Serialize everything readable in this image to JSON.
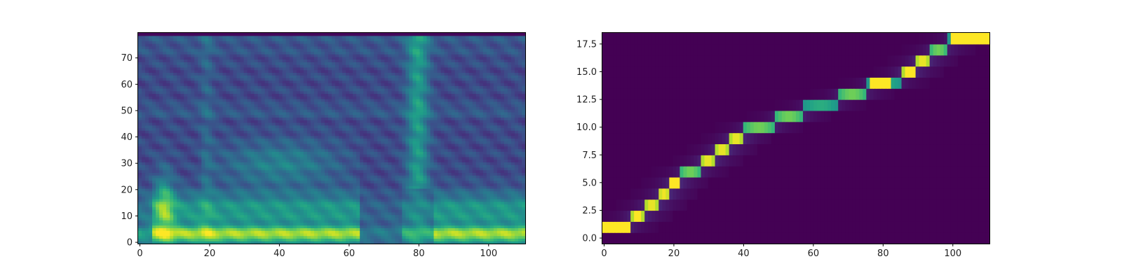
{
  "chart_data": [
    {
      "type": "heatmap",
      "title": "",
      "xlabel": "",
      "ylabel": "",
      "xlim": [
        -0.5,
        110.5
      ],
      "ylim": [
        -0.5,
        79.5
      ],
      "xticks": [
        0,
        20,
        40,
        60,
        80,
        100
      ],
      "yticks": [
        0,
        10,
        20,
        30,
        40,
        50,
        60,
        70
      ],
      "xtick_labels": [
        "0",
        "20",
        "40",
        "60",
        "80",
        "100"
      ],
      "ytick_labels": [
        "0",
        "10",
        "20",
        "30",
        "40",
        "50",
        "60",
        "70"
      ],
      "colormap": "viridis",
      "n_cols": 110,
      "n_rows": 80,
      "content": "mel spectrogram-like intensity: bright low-frequency band across frames 5-62 and 84-110, bright vertical band near frame 78-80, darker gap around frames 63-75"
    },
    {
      "type": "heatmap",
      "title": "",
      "xlabel": "",
      "ylabel": "",
      "xlim": [
        -0.5,
        110.5
      ],
      "ylim": [
        -0.5,
        18.5
      ],
      "xticks": [
        0,
        20,
        40,
        60,
        80,
        100
      ],
      "yticks": [
        0,
        2.5,
        5,
        7.5,
        10,
        12.5,
        15,
        17.5
      ],
      "xtick_labels": [
        "0",
        "20",
        "40",
        "60",
        "80",
        "100"
      ],
      "ytick_labels": [
        "0.0",
        "2.5",
        "5.0",
        "7.5",
        "10.0",
        "12.5",
        "15.0",
        "17.5"
      ],
      "colormap": "viridis",
      "n_cols": 110,
      "n_rows": 19,
      "alignment_path": [
        {
          "row": 1,
          "x_start": 0,
          "x_end": 7
        },
        {
          "row": 2,
          "x_start": 8,
          "x_end": 11
        },
        {
          "row": 3,
          "x_start": 12,
          "x_end": 15
        },
        {
          "row": 4,
          "x_start": 16,
          "x_end": 18
        },
        {
          "row": 5,
          "x_start": 19,
          "x_end": 21
        },
        {
          "row": 6,
          "x_start": 22,
          "x_end": 27
        },
        {
          "row": 7,
          "x_start": 28,
          "x_end": 31
        },
        {
          "row": 8,
          "x_start": 32,
          "x_end": 35
        },
        {
          "row": 9,
          "x_start": 36,
          "x_end": 39
        },
        {
          "row": 10,
          "x_start": 40,
          "x_end": 48
        },
        {
          "row": 11,
          "x_start": 49,
          "x_end": 56
        },
        {
          "row": 12,
          "x_start": 57,
          "x_end": 66
        },
        {
          "row": 13,
          "x_start": 67,
          "x_end": 74
        },
        {
          "row": 14,
          "x_start": 75,
          "x_end": 84
        },
        {
          "row": 15,
          "x_start": 85,
          "x_end": 88
        },
        {
          "row": 16,
          "x_start": 89,
          "x_end": 92
        },
        {
          "row": 17,
          "x_start": 93,
          "x_end": 97
        },
        {
          "row": 18,
          "x_start": 98,
          "x_end": 110
        }
      ]
    }
  ]
}
